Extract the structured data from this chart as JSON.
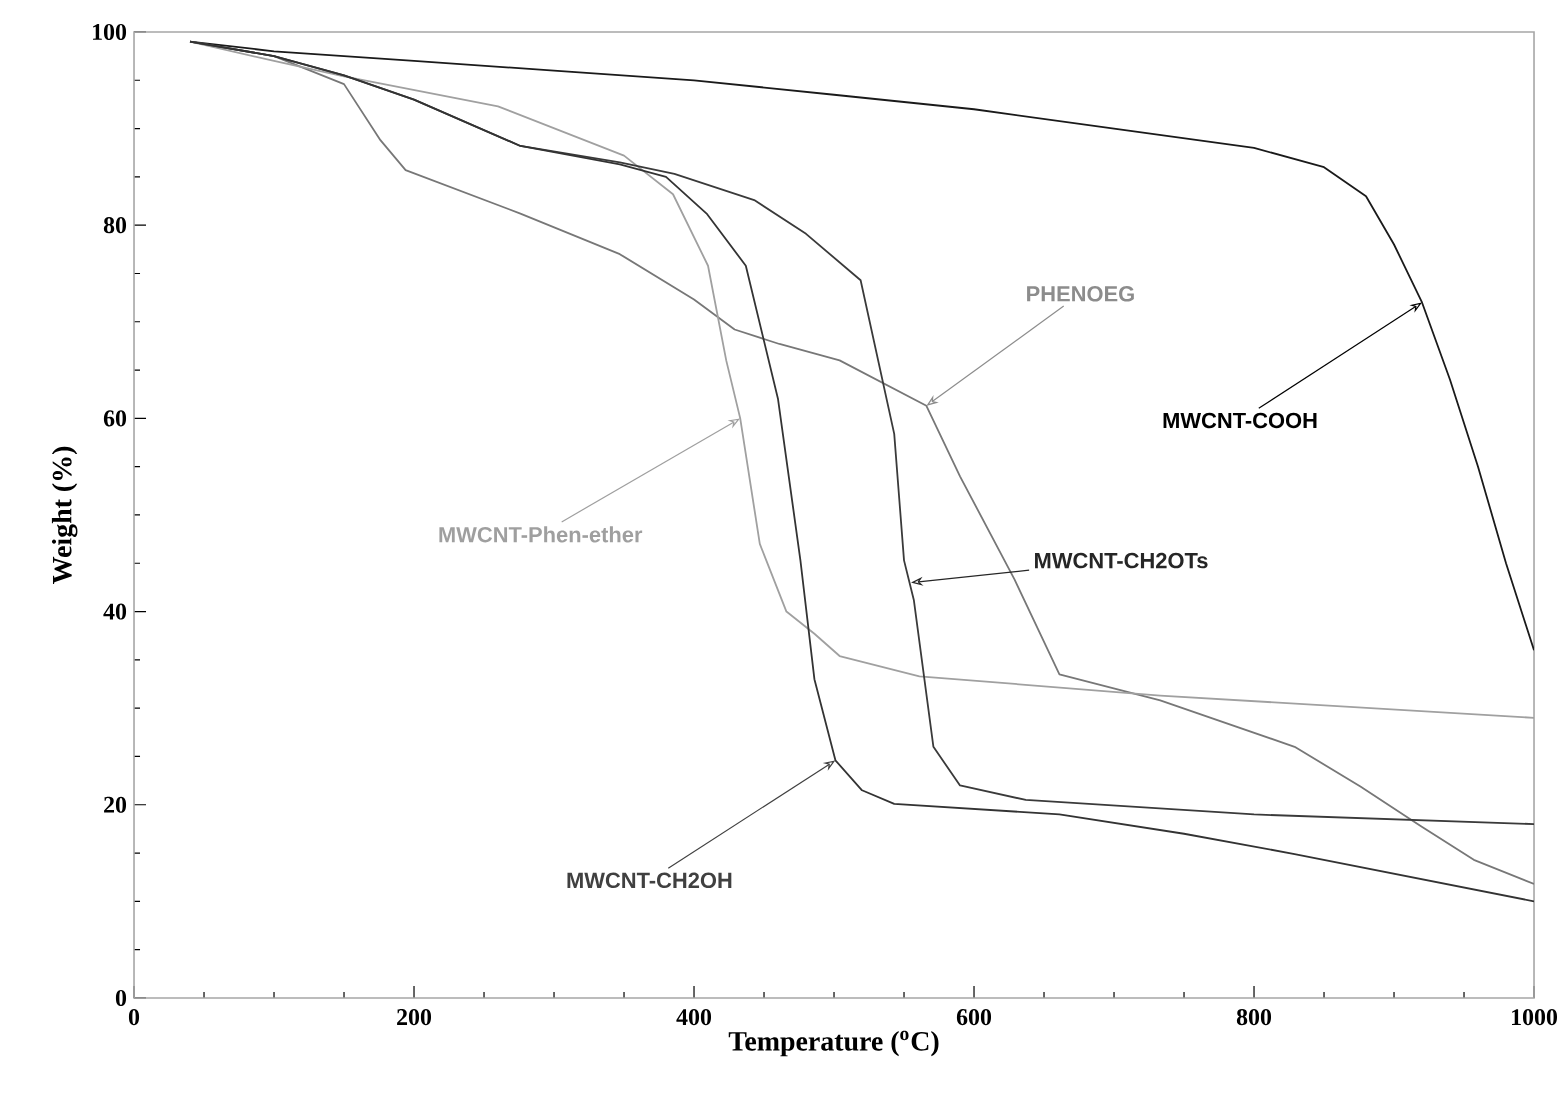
{
  "chart_data": {
    "type": "line",
    "xlabel": "Temperature ($^{o}$C)",
    "ylabel": "Weight (%)",
    "xlim": [
      0,
      1000
    ],
    "ylim": [
      0,
      100
    ],
    "xticks": [
      0,
      200,
      400,
      600,
      800,
      1000
    ],
    "yticks": [
      0,
      20,
      40,
      60,
      80,
      100
    ],
    "series": [
      {
        "color": "#1a1a1a",
        "x": [
          40,
          100,
          200,
          300,
          400,
          500,
          600,
          700,
          800,
          850,
          880,
          900,
          920,
          940,
          960,
          980,
          1000
        ],
        "values": [
          99,
          98,
          97,
          96,
          95,
          93.5,
          92,
          90,
          88,
          86,
          83,
          78,
          72,
          64,
          55,
          45,
          36
        ]
      },
      {
        "color": "#777777",
        "x": [
          40,
          100,
          150,
          176,
          194,
          276,
          347,
          400,
          429,
          461,
          504,
          566,
          590,
          629,
          661,
          733,
          829,
          876,
          919,
          957,
          1000
        ],
        "values": [
          99,
          97.5,
          94.6,
          88.8,
          85.7,
          81.2,
          77,
          72.3,
          69.2,
          67.7,
          66,
          61.3,
          54,
          43.3,
          33.5,
          30.8,
          26,
          21.9,
          17.8,
          14.3,
          11.8
        ]
      },
      {
        "color": "#a0a0a0",
        "x": [
          40,
          100,
          150,
          260,
          350,
          385,
          410,
          423,
          433,
          447,
          466,
          486,
          504,
          561,
          733,
          1000
        ],
        "values": [
          99,
          97,
          95.4,
          92.3,
          87.2,
          83.2,
          75.8,
          66,
          60,
          47,
          40,
          37.7,
          35.4,
          33.3,
          31.3,
          29
        ]
      },
      {
        "color": "#3a3a3a",
        "x": [
          40,
          100,
          150,
          200,
          276,
          347,
          386,
          443,
          480,
          519,
          543,
          550,
          557,
          571,
          590,
          637,
          800,
          1000
        ],
        "values": [
          99,
          97.5,
          95.5,
          93,
          88.2,
          86.5,
          85.3,
          82.6,
          79.1,
          74.3,
          58.4,
          45.3,
          41.2,
          26,
          22,
          20.5,
          19,
          18
        ]
      },
      {
        "color": "#333333",
        "x": [
          40,
          100,
          150,
          200,
          276,
          347,
          380,
          409,
          437,
          460,
          476,
          486,
          501,
          520,
          543,
          661,
          750,
          829,
          1000
        ],
        "values": [
          99,
          97.5,
          95.5,
          93,
          88.2,
          86.3,
          85,
          81.2,
          75.8,
          62,
          45.3,
          33,
          24.6,
          21.5,
          20.1,
          19,
          17,
          14.9,
          10
        ]
      }
    ],
    "annotations": [
      {
        "text": "MWCNT-COOH",
        "x": 920,
        "y": 72
      },
      {
        "text": "PHENOEG",
        "x": 566,
        "y": 61.3
      },
      {
        "text": "MWCNT-Phen-ether",
        "x": 433,
        "y": 60
      },
      {
        "text": "MWCNT-CH2OTs",
        "x": 555,
        "y": 43
      },
      {
        "text": "MWCNT-CH2OH",
        "x": 501,
        "y": 24.6
      }
    ]
  }
}
